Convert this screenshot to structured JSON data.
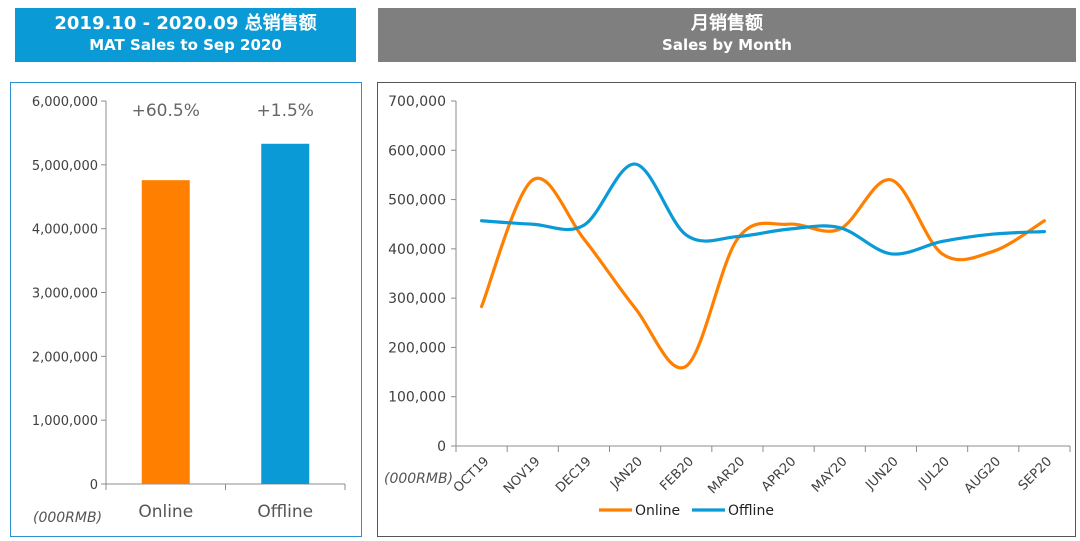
{
  "left_header": {
    "line1": "2019.10 - 2020.09 总销售额",
    "line2": "MAT Sales to Sep 2020"
  },
  "right_header": {
    "line1": "月销售额",
    "line2": "Sales by Month"
  },
  "colors": {
    "online": "#ff8000",
    "offline": "#0a9ad6",
    "left_header_bg": "#0a9ad6",
    "right_header_bg": "#7f7f7f"
  },
  "chart_data": [
    {
      "type": "bar",
      "categories": [
        "Online",
        "Offline"
      ],
      "values": [
        4760000,
        5330000
      ],
      "growth_labels": [
        "+60.5%",
        "+1.5%"
      ],
      "yticks": [
        "0",
        "1,000,000",
        "2,000,000",
        "3,000,000",
        "4,000,000",
        "5,000,000",
        "6,000,000"
      ],
      "ylim": [
        0,
        6000000
      ],
      "unit_label": "(000RMB)",
      "grid": false
    },
    {
      "type": "line",
      "categories": [
        "OCT19",
        "NOV19",
        "DEC19",
        "JAN20",
        "FEB20",
        "MAR20",
        "APR20",
        "MAY20",
        "JUN20",
        "JUL20",
        "AUG20",
        "SEP20"
      ],
      "series": [
        {
          "name": "Online",
          "values": [
            283000,
            540000,
            420000,
            280000,
            162000,
            420000,
            450000,
            440000,
            540000,
            390000,
            395000,
            457000
          ]
        },
        {
          "name": "Offline",
          "values": [
            457000,
            450000,
            448000,
            572000,
            428000,
            425000,
            440000,
            443000,
            390000,
            415000,
            430000,
            435000
          ]
        }
      ],
      "yticks": [
        "0",
        "100,000",
        "200,000",
        "300,000",
        "400,000",
        "500,000",
        "600,000",
        "700,000"
      ],
      "ylim": [
        0,
        700000
      ],
      "unit_label": "(000RMB)",
      "legend": "bottom",
      "grid": false
    }
  ]
}
